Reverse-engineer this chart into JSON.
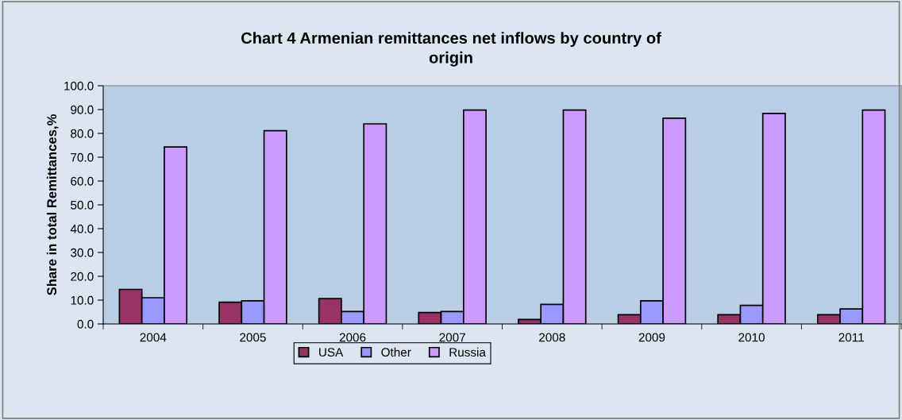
{
  "chart_data": {
    "type": "bar",
    "title": "Chart 4 Armenian remittances net inflows by country of\norigin",
    "ylabel": "Share in total Remittances,%",
    "categories": [
      "2004",
      "2005",
      "2006",
      "2007",
      "2008",
      "2009",
      "2010",
      "2011"
    ],
    "series": [
      {
        "name": "USA",
        "color": "#993366",
        "values": [
          14.5,
          9.1,
          10.6,
          4.8,
          1.9,
          3.9,
          3.9,
          3.9
        ]
      },
      {
        "name": "Other",
        "color": "#9999ff",
        "values": [
          11.0,
          9.7,
          5.2,
          5.2,
          8.2,
          9.7,
          7.8,
          6.3
        ]
      },
      {
        "name": "Russia",
        "color": "#cc99ff",
        "values": [
          74.3,
          81.1,
          84.0,
          89.8,
          89.8,
          86.4,
          88.4,
          89.8
        ]
      }
    ],
    "ylim": [
      0,
      100
    ],
    "yticks": [
      {
        "value": 0,
        "label": "0.0"
      },
      {
        "value": 10,
        "label": "10.0"
      },
      {
        "value": 20,
        "label": "20.0"
      },
      {
        "value": 30,
        "label": "30.0"
      },
      {
        "value": 40,
        "label": "40.0"
      },
      {
        "value": 50,
        "label": "50.0"
      },
      {
        "value": 60,
        "label": "60.0"
      },
      {
        "value": 70,
        "label": "70.0"
      },
      {
        "value": 80,
        "label": "80.0"
      },
      {
        "value": 90,
        "label": "90.0"
      },
      {
        "value": 100,
        "label": "100.0"
      }
    ],
    "grid": false,
    "legend": "bottom"
  }
}
